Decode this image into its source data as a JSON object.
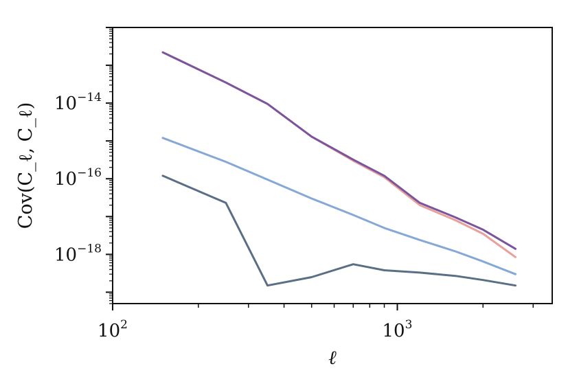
{
  "chart_data": {
    "type": "line",
    "xscale": "log",
    "yscale": "log",
    "xlim": [
      100,
      3500
    ],
    "ylim": [
      5e-20,
      1e-12
    ],
    "xlabel": "ℓ",
    "ylabel": "Cov(C_ℓ, C_ℓ)",
    "x_ticks": [
      {
        "value": 100,
        "base": "10",
        "exp": "2"
      },
      {
        "value": 1000,
        "base": "10",
        "exp": "3"
      }
    ],
    "y_ticks": [
      {
        "value": 1e-14,
        "base": "10",
        "exp": "−14"
      },
      {
        "value": 1e-16,
        "base": "10",
        "exp": "−16"
      },
      {
        "value": 1e-18,
        "base": "10",
        "exp": "−18"
      }
    ],
    "grid": false,
    "legend": "none",
    "series": [
      {
        "color": "#e8a09a",
        "x": [
          150,
          250,
          350,
          500,
          700,
          900,
          1200,
          1600,
          2000,
          2600
        ],
        "y": [
          2.2e-13,
          3.5e-14,
          9.5e-15,
          1.3e-15,
          3e-16,
          1.1e-16,
          2e-17,
          8e-18,
          3.5e-18,
          8.5e-19
        ]
      },
      {
        "color": "#7a559e",
        "x": [
          150,
          250,
          350,
          500,
          700,
          900,
          1200,
          1600,
          2000,
          2600
        ],
        "y": [
          2.2e-13,
          3.5e-14,
          9.5e-15,
          1.3e-15,
          3.2e-16,
          1.2e-16,
          2.3e-17,
          9.5e-18,
          4.5e-18,
          1.4e-18
        ]
      },
      {
        "color": "#86a8d6",
        "x": [
          150,
          250,
          350,
          500,
          700,
          900,
          1200,
          1600,
          2000,
          2600
        ],
        "y": [
          1.2e-15,
          2.8e-16,
          9.5e-17,
          3e-17,
          1.1e-17,
          5e-18,
          2.4e-18,
          1.2e-18,
          6.5e-19,
          3e-19
        ]
      },
      {
        "color": "#5a6f85",
        "x": [
          150,
          250,
          350,
          500,
          700,
          900,
          1200,
          1600,
          2000,
          2600
        ],
        "y": [
          1.2e-16,
          2.3e-17,
          1.5e-19,
          2.5e-19,
          5.5e-19,
          3.8e-19,
          3.3e-19,
          2.7e-19,
          2.1e-19,
          1.5e-19
        ]
      }
    ]
  }
}
